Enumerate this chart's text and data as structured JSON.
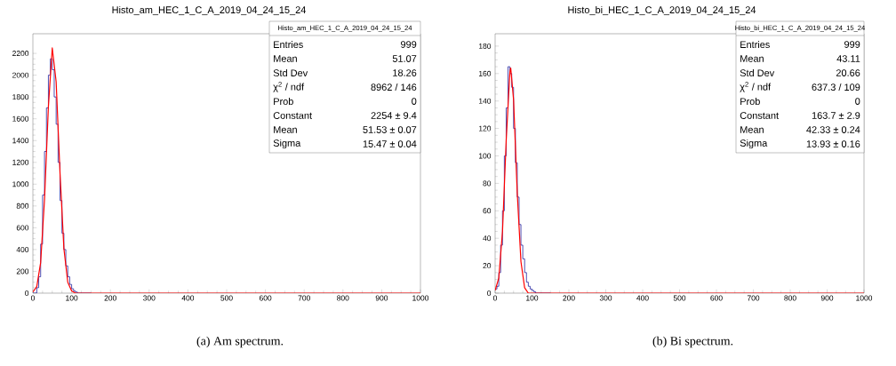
{
  "chart_data": [
    {
      "type": "histogram",
      "title": "Histo_am_HEC_1_C_A_2019_04_24_15_24",
      "bins": [
        0,
        5,
        10,
        15,
        20,
        25,
        30,
        35,
        40,
        45,
        50,
        55,
        60,
        65,
        70,
        75,
        80,
        85,
        90,
        95,
        100,
        105,
        110,
        115,
        120,
        125,
        130,
        135,
        140,
        145,
        150
      ],
      "series": [
        {
          "color": "#2323a0",
          "values": [
            0,
            0,
            50,
            150,
            450,
            900,
            1300,
            1700,
            2000,
            2150,
            2050,
            1800,
            1550,
            1200,
            850,
            550,
            400,
            250,
            150,
            80,
            40,
            20,
            10,
            0,
            0,
            0,
            0,
            0,
            0,
            0
          ]
        },
        {
          "type": "line",
          "color": "#ff0000",
          "x": [
            0,
            10,
            20,
            30,
            40,
            50,
            60,
            70,
            80,
            90,
            100,
            110,
            120,
            1000
          ],
          "values": [
            10,
            60,
            280,
            860,
            1710,
            2250,
            1940,
            1100,
            410,
            100,
            20,
            0,
            0,
            0
          ]
        }
      ],
      "xlim": [
        0,
        1000
      ],
      "xticks": [
        0,
        100,
        200,
        300,
        400,
        500,
        600,
        700,
        800,
        900,
        1000
      ],
      "ylim": [
        0,
        2380
      ],
      "yticks": [
        0,
        200,
        400,
        600,
        800,
        1000,
        1200,
        1400,
        1600,
        1800,
        2000,
        2200
      ],
      "annotations": [
        "Histo_am_HEC_1_C_A_2019_04_24_15_24",
        "Entries",
        "999",
        "Mean",
        "51.07",
        "Std Dev",
        "18.26",
        "χ$^{2}$ / ndf",
        "8962 / 146",
        "Prob",
        "0",
        "Constant",
        "2254 ± 9.4",
        "Mean",
        "51.53 ± 0.07",
        "Sigma",
        "15.47 ± 0.04",
        "(a)  Am spectrum."
      ]
    },
    {
      "type": "histogram",
      "title": "Histo_bi_HEC_1_C_A_2019_04_24_15_24",
      "bins": [
        0,
        5,
        10,
        15,
        20,
        25,
        30,
        35,
        40,
        45,
        50,
        55,
        60,
        65,
        70,
        75,
        80,
        85,
        90,
        95,
        100,
        105,
        110,
        115,
        120,
        125,
        130,
        135,
        140,
        145,
        150
      ],
      "series": [
        {
          "color": "#2323a0",
          "values": [
            3,
            5,
            15,
            35,
            60,
            100,
            135,
            165,
            160,
            150,
            120,
            95,
            70,
            50,
            35,
            25,
            15,
            8,
            5,
            3,
            2,
            1,
            0,
            0,
            0,
            0,
            0,
            0,
            0,
            0
          ]
        },
        {
          "type": "line",
          "color": "#ff0000",
          "x": [
            0,
            10,
            20,
            30,
            40,
            42.3,
            50,
            60,
            70,
            80,
            90,
            100,
            1000
          ],
          "values": [
            2,
            11,
            45,
            111,
            161,
            164,
            141,
            73,
            23,
            4,
            0,
            0,
            0
          ]
        }
      ],
      "xlim": [
        0,
        1000
      ],
      "xticks": [
        0,
        100,
        200,
        300,
        400,
        500,
        600,
        700,
        800,
        900,
        1000
      ],
      "ylim": [
        0,
        189
      ],
      "yticks": [
        0,
        20,
        40,
        60,
        80,
        100,
        120,
        140,
        160,
        180
      ],
      "annotations": [
        "Histo_bi_HEC_1_C_A_2019_04_24_15_24",
        "Entries",
        "999",
        "Mean",
        "43.11",
        "Std Dev",
        "20.66",
        "χ$^{2}$ / ndf",
        "637.3 / 109",
        "Prob",
        "0",
        "Constant",
        "163.7 ± 2.9",
        "Mean",
        "42.33 ± 0.24",
        "Sigma",
        "13.93 ± 0.16",
        "(b)  Bi spectrum."
      ]
    }
  ]
}
